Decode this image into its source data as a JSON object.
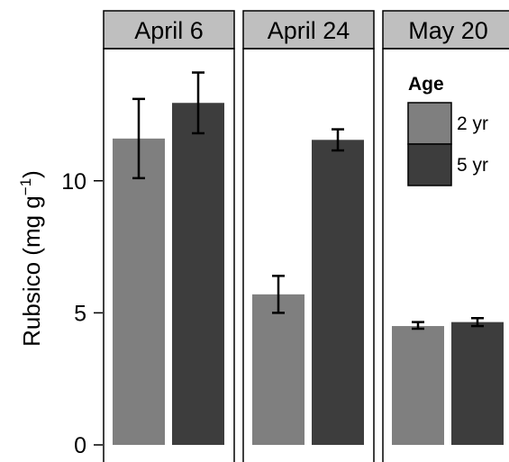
{
  "chart_data": {
    "type": "bar",
    "ylabel": "Rubsico (mg g⁻¹)",
    "ylabel_main": "Rubsico (mg g",
    "ylabel_exp": "−1",
    "ylabel_close": ")",
    "ylim": [
      0,
      14.8
    ],
    "yticks": [
      0,
      5,
      10
    ],
    "ytick_labels": [
      "0",
      "5",
      "10"
    ],
    "facets": [
      "April 6",
      "April 24",
      "May 20"
    ],
    "legend": {
      "title": "Age",
      "placement": "top-right",
      "entries": [
        "2 yr",
        "5 yr"
      ]
    },
    "colors": {
      "2 yr": "#7f7f7f",
      "5 yr": "#3d3d3d"
    },
    "series": [
      {
        "name": "2 yr",
        "values": [
          11.6,
          5.7,
          4.5
        ],
        "err_low": [
          10.1,
          5.0,
          4.4
        ],
        "err_high": [
          13.1,
          6.4,
          4.65
        ]
      },
      {
        "name": "5 yr",
        "values": [
          12.95,
          11.55,
          4.65
        ],
        "err_low": [
          11.8,
          11.15,
          4.5
        ],
        "err_high": [
          14.1,
          11.95,
          4.8
        ]
      }
    ]
  }
}
